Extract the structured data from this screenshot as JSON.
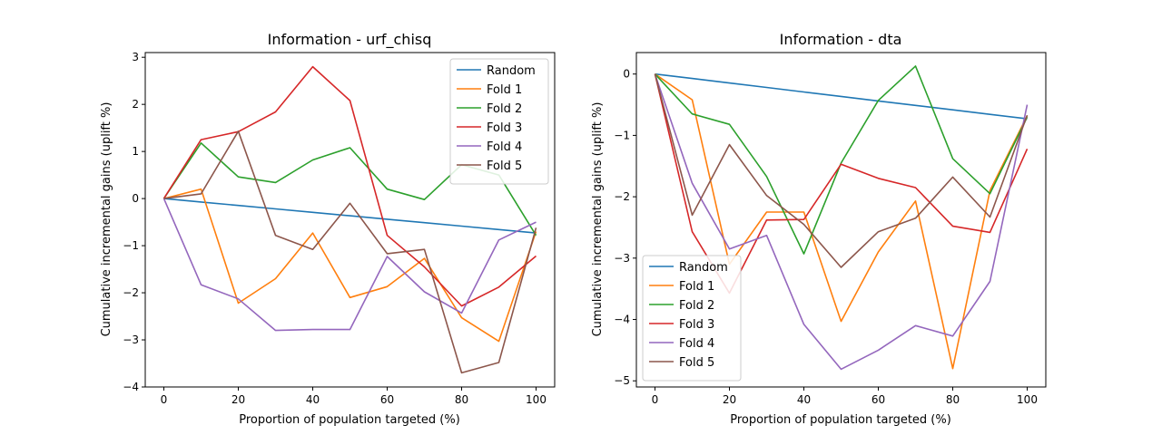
{
  "chart_data": [
    {
      "type": "line",
      "title": "Information - urf_chisq",
      "xlabel": "Proportion of population targeted (%)",
      "ylabel": "Cumulative incremental gains (uplift %)",
      "xlim": [
        -5,
        105
      ],
      "ylim": [
        -4.0,
        3.1
      ],
      "xticks": [
        0,
        20,
        40,
        60,
        80,
        100
      ],
      "yticks": [
        -4,
        -3,
        -2,
        -1,
        0,
        1,
        2,
        3
      ],
      "legend_position": "upper right",
      "x": [
        0,
        10,
        20,
        30,
        40,
        50,
        60,
        70,
        80,
        90,
        100
      ],
      "series": [
        {
          "name": "Random",
          "color": "#1f77b4",
          "values": [
            0,
            -0.073,
            -0.146,
            -0.219,
            -0.292,
            -0.365,
            -0.438,
            -0.511,
            -0.584,
            -0.657,
            -0.73
          ]
        },
        {
          "name": "Fold 1",
          "color": "#ff7f0e",
          "values": [
            0,
            0.2,
            -2.22,
            -1.7,
            -0.73,
            -2.1,
            -1.87,
            -1.27,
            -2.53,
            -3.03,
            -0.7
          ]
        },
        {
          "name": "Fold 2",
          "color": "#2ca02c",
          "values": [
            0,
            1.18,
            0.46,
            0.34,
            0.82,
            1.08,
            0.2,
            -0.02,
            0.72,
            0.5,
            -0.78
          ]
        },
        {
          "name": "Fold 3",
          "color": "#d62728",
          "values": [
            0,
            1.25,
            1.42,
            1.84,
            2.8,
            2.08,
            -0.78,
            -1.45,
            -2.28,
            -1.88,
            -1.22
          ]
        },
        {
          "name": "Fold 4",
          "color": "#9467bd",
          "values": [
            0,
            -1.83,
            -2.13,
            -2.8,
            -2.78,
            -2.78,
            -1.23,
            -1.98,
            -2.43,
            -0.88,
            -0.5
          ]
        },
        {
          "name": "Fold 5",
          "color": "#8c564b",
          "values": [
            0,
            0.1,
            1.43,
            -0.78,
            -1.08,
            -0.1,
            -1.17,
            -1.08,
            -3.7,
            -3.48,
            -0.62
          ]
        }
      ]
    },
    {
      "type": "line",
      "title": "Information - dta",
      "xlabel": "Proportion of population targeted (%)",
      "ylabel": "Cumulative incremental gains (uplift %)",
      "xlim": [
        -5,
        105
      ],
      "ylim": [
        -5.1,
        0.35
      ],
      "xticks": [
        0,
        20,
        40,
        60,
        80,
        100
      ],
      "yticks": [
        -5,
        -4,
        -3,
        -2,
        -1,
        0
      ],
      "legend_position": "lower left",
      "x": [
        0,
        10,
        20,
        30,
        40,
        50,
        60,
        70,
        80,
        90,
        100
      ],
      "series": [
        {
          "name": "Random",
          "color": "#1f77b4",
          "values": [
            0,
            -0.073,
            -0.146,
            -0.219,
            -0.292,
            -0.365,
            -0.438,
            -0.511,
            -0.584,
            -0.657,
            -0.73
          ]
        },
        {
          "name": "Fold 1",
          "color": "#ff7f0e",
          "values": [
            0,
            -0.42,
            -3.1,
            -2.25,
            -2.25,
            -4.03,
            -2.9,
            -2.07,
            -4.8,
            -1.9,
            -0.68
          ]
        },
        {
          "name": "Fold 2",
          "color": "#2ca02c",
          "values": [
            0,
            -0.65,
            -0.82,
            -1.67,
            -2.93,
            -1.45,
            -0.43,
            0.13,
            -1.38,
            -1.95,
            -0.7
          ]
        },
        {
          "name": "Fold 3",
          "color": "#d62728",
          "values": [
            0,
            -2.57,
            -3.57,
            -2.38,
            -2.37,
            -1.47,
            -1.7,
            -1.85,
            -2.48,
            -2.58,
            -1.22
          ]
        },
        {
          "name": "Fold 4",
          "color": "#9467bd",
          "values": [
            0,
            -1.78,
            -2.85,
            -2.63,
            -4.08,
            -4.81,
            -4.5,
            -4.1,
            -4.27,
            -3.38,
            -0.5
          ]
        },
        {
          "name": "Fold 5",
          "color": "#8c564b",
          "values": [
            0,
            -2.3,
            -1.15,
            -1.98,
            -2.45,
            -3.15,
            -2.57,
            -2.35,
            -1.68,
            -2.33,
            -0.67
          ]
        }
      ]
    }
  ]
}
